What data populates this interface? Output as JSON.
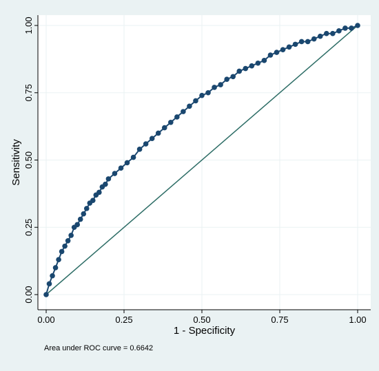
{
  "chart_data": {
    "type": "line",
    "title": "",
    "xlabel": "1 - Specificity",
    "ylabel": "Sensitivity",
    "xlim": [
      0,
      1
    ],
    "ylim": [
      0,
      1
    ],
    "xticks": [
      "0.00",
      "0.25",
      "0.50",
      "0.75",
      "1.00"
    ],
    "yticks": [
      "0.00",
      "0.25",
      "0.50",
      "0.75",
      "1.00"
    ],
    "grid": true,
    "legend": "none",
    "note": "Area under ROC curve = 0.6642",
    "colors": {
      "outer_background": "#eaf2f3",
      "plot_background": "#ffffff",
      "grid": "#eaf2f3",
      "curve": "#1a476f",
      "reference_line": "#2d6d66"
    },
    "series": [
      {
        "values": [
          [
            0.0,
            0.0
          ],
          [
            0.01,
            0.04
          ],
          [
            0.02,
            0.07
          ],
          [
            0.03,
            0.1
          ],
          [
            0.04,
            0.13
          ],
          [
            0.05,
            0.16
          ],
          [
            0.06,
            0.18
          ],
          [
            0.07,
            0.2
          ],
          [
            0.08,
            0.22
          ],
          [
            0.09,
            0.25
          ],
          [
            0.1,
            0.26
          ],
          [
            0.11,
            0.28
          ],
          [
            0.12,
            0.3
          ],
          [
            0.13,
            0.32
          ],
          [
            0.14,
            0.34
          ],
          [
            0.15,
            0.35
          ],
          [
            0.16,
            0.37
          ],
          [
            0.17,
            0.38
          ],
          [
            0.18,
            0.4
          ],
          [
            0.19,
            0.41
          ],
          [
            0.2,
            0.43
          ],
          [
            0.22,
            0.45
          ],
          [
            0.24,
            0.47
          ],
          [
            0.26,
            0.49
          ],
          [
            0.28,
            0.51
          ],
          [
            0.3,
            0.54
          ],
          [
            0.32,
            0.56
          ],
          [
            0.34,
            0.58
          ],
          [
            0.36,
            0.6
          ],
          [
            0.38,
            0.62
          ],
          [
            0.4,
            0.64
          ],
          [
            0.42,
            0.66
          ],
          [
            0.44,
            0.68
          ],
          [
            0.46,
            0.7
          ],
          [
            0.48,
            0.72
          ],
          [
            0.5,
            0.74
          ],
          [
            0.52,
            0.75
          ],
          [
            0.54,
            0.77
          ],
          [
            0.56,
            0.78
          ],
          [
            0.58,
            0.8
          ],
          [
            0.6,
            0.81
          ],
          [
            0.62,
            0.83
          ],
          [
            0.64,
            0.84
          ],
          [
            0.66,
            0.85
          ],
          [
            0.68,
            0.86
          ],
          [
            0.7,
            0.87
          ],
          [
            0.72,
            0.89
          ],
          [
            0.74,
            0.9
          ],
          [
            0.76,
            0.91
          ],
          [
            0.78,
            0.92
          ],
          [
            0.8,
            0.93
          ],
          [
            0.82,
            0.94
          ],
          [
            0.84,
            0.94
          ],
          [
            0.86,
            0.95
          ],
          [
            0.88,
            0.96
          ],
          [
            0.9,
            0.97
          ],
          [
            0.92,
            0.97
          ],
          [
            0.94,
            0.98
          ],
          [
            0.96,
            0.99
          ],
          [
            0.98,
            0.99
          ],
          [
            1.0,
            1.0
          ]
        ]
      },
      {
        "values": [
          [
            0,
            0
          ],
          [
            1,
            1
          ]
        ]
      }
    ]
  }
}
